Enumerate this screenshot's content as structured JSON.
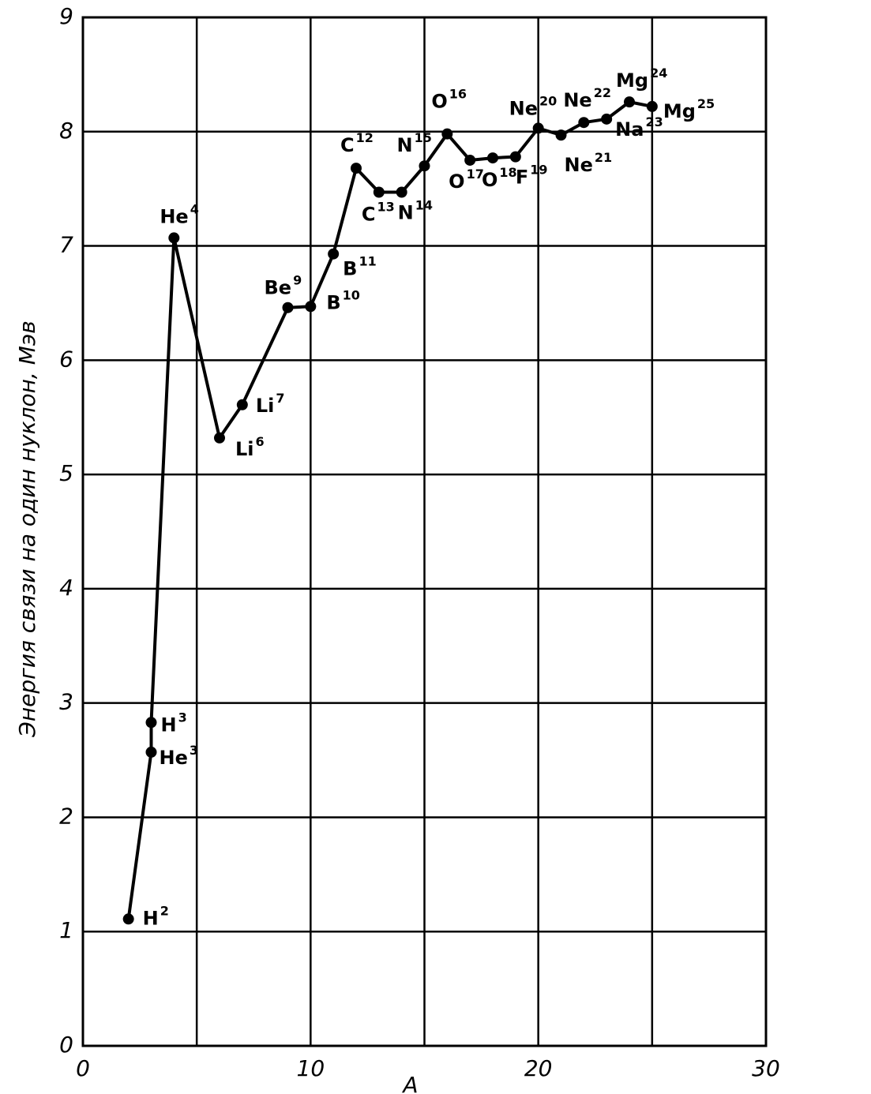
{
  "chart_data": {
    "type": "line",
    "ylabel": "Энергия связи на один нуклон, Мэв",
    "xlabel": "A",
    "x": [
      2,
      3,
      3,
      4,
      6,
      7,
      9,
      10,
      11,
      12,
      13,
      14,
      15,
      16,
      17,
      18,
      19,
      20,
      21,
      22,
      23,
      24,
      25
    ],
    "series": [
      {
        "color": "#000000",
        "values": [
          1.11,
          2.57,
          2.83,
          7.07,
          5.32,
          5.61,
          6.46,
          6.47,
          6.93,
          7.68,
          7.47,
          7.47,
          7.7,
          7.98,
          7.75,
          7.77,
          7.78,
          8.03,
          7.97,
          8.08,
          8.11,
          8.26,
          8.22
        ]
      }
    ],
    "point_labels": [
      {
        "symbol": "H",
        "mass": "2"
      },
      {
        "symbol": "He",
        "mass": "3"
      },
      {
        "symbol": "H",
        "mass": "3"
      },
      {
        "symbol": "He",
        "mass": "4"
      },
      {
        "symbol": "Li",
        "mass": "6"
      },
      {
        "symbol": "Li",
        "mass": "7"
      },
      {
        "symbol": "Be",
        "mass": "9"
      },
      {
        "symbol": "B",
        "mass": "10"
      },
      {
        "symbol": "B",
        "mass": "11"
      },
      {
        "symbol": "C",
        "mass": "12"
      },
      {
        "symbol": "C",
        "mass": "13"
      },
      {
        "symbol": "N",
        "mass": "14"
      },
      {
        "symbol": "N",
        "mass": "15"
      },
      {
        "symbol": "O",
        "mass": "16"
      },
      {
        "symbol": "O",
        "mass": "17"
      },
      {
        "symbol": "O",
        "mass": "18"
      },
      {
        "symbol": "F",
        "mass": "19"
      },
      {
        "symbol": "Ne",
        "mass": "20"
      },
      {
        "symbol": "Ne",
        "mass": "21"
      },
      {
        "symbol": "Ne",
        "mass": "22"
      },
      {
        "symbol": "Na",
        "mass": "23"
      },
      {
        "symbol": "Mg",
        "mass": "24"
      },
      {
        "symbol": "Mg",
        "mass": "25"
      }
    ],
    "xlim": [
      0,
      30
    ],
    "xticks": [
      0,
      10,
      20,
      30
    ],
    "xgrid": [
      5,
      15,
      25
    ],
    "ylim": [
      0,
      9
    ],
    "yticks": [
      0,
      1,
      2,
      3,
      4,
      5,
      6,
      7,
      8,
      9
    ],
    "grid": true
  }
}
